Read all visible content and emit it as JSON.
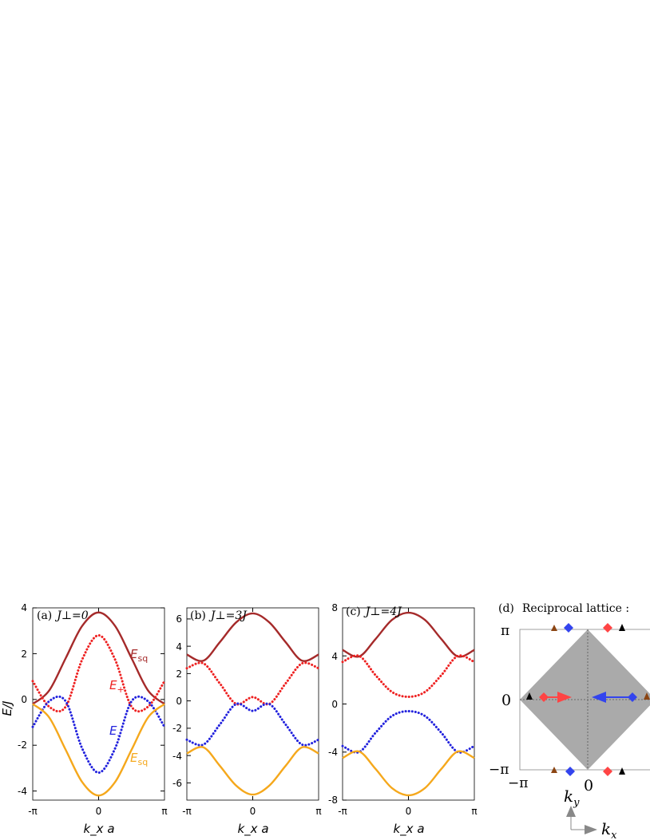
{
  "colors": {
    "E_upper_sq": "#a52a2a",
    "E_plus": "#ee2222",
    "E_minus": "#2222dd",
    "E_lower_sq": "#f5a81c",
    "bz_fill": "#aaaaaa",
    "red_marker": "#ff4444",
    "blue_marker": "#3344ee",
    "brown_marker": "#8b4513",
    "black_marker": "#000000"
  },
  "y_axis_label": "E/J",
  "x_axis_label": "k_x a",
  "x_ticks": [
    "-π",
    "0",
    "π"
  ],
  "panels": [
    {
      "label": "(a)",
      "coupling": "J⊥=0",
      "y_ticks": [
        "4",
        "2",
        "0",
        "-2",
        "-4"
      ]
    },
    {
      "label": "(b)",
      "coupling": "J⊥=3J",
      "y_ticks": [
        "6",
        "4",
        "2",
        "0",
        "-2",
        "-4",
        "-6"
      ]
    },
    {
      "label": "(c)",
      "coupling": "J⊥=4J",
      "y_ticks": [
        "8",
        "4",
        "0",
        "-4",
        "-8"
      ]
    }
  ],
  "curve_labels": {
    "E_sq_upper": "E_sq",
    "E_plus": "E_+",
    "E_minus": "E_-",
    "E_sq_lower": "E_sq"
  },
  "panel_d": {
    "label": "(d)",
    "title": "Reciprocal lattice :",
    "y_ticks": [
      "π",
      "0",
      "−π"
    ],
    "x_ticks": [
      "−π",
      "0"
    ],
    "axis_ky": "k_y",
    "axis_kx": "k_x"
  },
  "chart_data": [
    {
      "type": "line",
      "panel": "(a)",
      "title": "J⊥=0",
      "xlabel": "k_x a",
      "ylabel": "E/J",
      "xlim": [
        -3.14159,
        3.14159
      ],
      "ylim": [
        -4.2,
        4.2
      ],
      "x": [
        -3.14159,
        -2.35619,
        -1.5708,
        -0.7854,
        0,
        0.7854,
        1.5708,
        2.35619,
        3.14159
      ],
      "series": [
        {
          "name": "E_sq",
          "style": "solid",
          "values": [
            0,
            0.59,
            2.0,
            3.41,
            4.0,
            3.41,
            2.0,
            0.59,
            0
          ]
        },
        {
          "name": "E_+",
          "style": "dotted",
          "values": [
            1.0,
            -0.12,
            -0.12,
            1.94,
            3.0,
            1.94,
            -0.12,
            -0.12,
            1.0
          ]
        },
        {
          "name": "E_-",
          "style": "dotted",
          "values": [
            -1.0,
            0.12,
            0.12,
            -1.94,
            -3.0,
            -1.94,
            0.12,
            0.12,
            -1.0
          ]
        },
        {
          "name": "E_sq",
          "style": "solid",
          "values": [
            0,
            -0.59,
            -2.0,
            -3.41,
            -4.0,
            -3.41,
            -2.0,
            -0.59,
            0
          ]
        }
      ]
    },
    {
      "type": "line",
      "panel": "(b)",
      "title": "J⊥=3J",
      "xlabel": "k_x a",
      "ylabel": "",
      "xlim": [
        -3.14159,
        3.14159
      ],
      "ylim": [
        -7,
        7
      ],
      "x": [
        -3.14159,
        -2.35619,
        -1.5708,
        -0.7854,
        0,
        0.7854,
        1.5708,
        2.35619,
        3.14159
      ],
      "series": [
        {
          "values": [
            3.6,
            3.15,
            4.5,
            5.95,
            6.6,
            5.95,
            4.5,
            3.15,
            3.6
          ]
        },
        {
          "values": [
            2.6,
            2.96,
            1.5,
            0.0,
            0.5,
            0.0,
            1.5,
            2.96,
            2.6
          ]
        },
        {
          "values": [
            -2.6,
            -2.96,
            -1.5,
            0.0,
            -0.5,
            0.0,
            -1.5,
            -2.96,
            -2.6
          ]
        },
        {
          "values": [
            -3.6,
            -3.15,
            -4.5,
            -5.95,
            -6.6,
            -5.95,
            -4.5,
            -3.15,
            -3.6
          ]
        }
      ]
    },
    {
      "type": "line",
      "panel": "(c)",
      "title": "J⊥=4J",
      "xlabel": "k_x a",
      "ylabel": "",
      "xlim": [
        -3.14159,
        3.14159
      ],
      "ylim": [
        -8,
        8
      ],
      "x": [
        -3.14159,
        -2.35619,
        -1.5708,
        -0.7854,
        0,
        0.7854,
        1.5708,
        2.35619,
        3.14159
      ],
      "series": [
        {
          "values": [
            4.5,
            3.95,
            5.4,
            7.0,
            7.6,
            7.0,
            5.4,
            3.95,
            4.5
          ]
        },
        {
          "values": [
            3.5,
            4.0,
            2.4,
            1.0,
            0.6,
            1.0,
            2.4,
            4.0,
            3.5
          ]
        },
        {
          "values": [
            -3.5,
            -4.0,
            -2.4,
            -1.0,
            -0.6,
            -1.0,
            -2.4,
            -4.0,
            -3.5
          ]
        },
        {
          "values": [
            -4.5,
            -3.95,
            -5.4,
            -7.0,
            -7.6,
            -7.0,
            -5.4,
            -3.95,
            -4.5
          ]
        }
      ]
    }
  ]
}
